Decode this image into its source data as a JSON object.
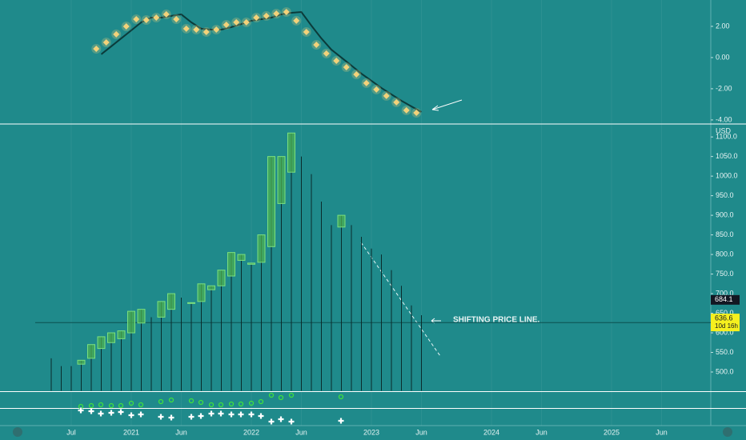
{
  "chart_data": [
    {
      "type": "line",
      "xlim": [
        -5.12,
        65.92
      ],
      "ylim": [
        -4.26,
        3.69
      ],
      "yticks": [
        {
          "value": 2,
          "label": "2.00"
        },
        {
          "value": 0,
          "label": "0.00"
        },
        {
          "value": -2,
          "label": "-2.00"
        },
        {
          "value": -4,
          "label": "-4.00"
        }
      ],
      "series": [
        {
          "color": "#0b3b3a",
          "style": "line",
          "x": [
            5,
            6,
            7,
            8,
            9,
            10,
            11,
            12,
            13,
            14,
            15,
            16,
            17,
            18,
            19,
            20,
            21,
            22,
            23,
            24,
            25,
            26,
            27,
            28,
            29,
            30,
            31,
            32,
            33,
            34,
            35,
            36,
            37
          ],
          "values": [
            0.21,
            0.72,
            1.23,
            1.74,
            2.26,
            2.56,
            2.56,
            2.67,
            2.77,
            2.26,
            1.85,
            1.79,
            1.79,
            1.95,
            2.15,
            2.36,
            2.46,
            2.56,
            2.77,
            2.87,
            2.92,
            2.05,
            1.23,
            0.51,
            0,
            -0.51,
            -1.03,
            -1.49,
            -1.95,
            -2.36,
            -2.77,
            -3.13,
            -3.49
          ]
        },
        {
          "color": "#f3d27a",
          "style": "diamonds",
          "x": [
            4.5,
            5.5,
            6.5,
            7.5,
            8.5,
            9.5,
            10.5,
            11.5,
            12.5,
            13.5,
            14.5,
            15.5,
            16.5,
            17.5,
            18.5,
            19.5,
            20.5,
            21.5,
            22.5,
            23.5,
            24.5,
            25.5,
            26.5,
            27.5,
            28.5,
            29.5,
            30.5,
            31.5,
            32.5,
            33.5,
            34.5,
            35.5,
            36.5
          ],
          "values": [
            0.56,
            0.97,
            1.49,
            2.0,
            2.46,
            2.41,
            2.56,
            2.77,
            2.46,
            1.85,
            1.79,
            1.64,
            1.79,
            2.1,
            2.26,
            2.26,
            2.56,
            2.67,
            2.82,
            2.92,
            2.36,
            1.64,
            0.82,
            0.26,
            -0.21,
            -0.62,
            -1.08,
            -1.64,
            -2.05,
            -2.46,
            -2.87,
            -3.38,
            -3.54
          ]
        }
      ]
    },
    {
      "type": "candlestick",
      "unit": "USD",
      "annotation": "SHIFTING PRICE LINE.",
      "xlim": [
        -5.12,
        65.92
      ],
      "xticks": [
        {
          "value": 2,
          "label": "Jul"
        },
        {
          "value": 8,
          "label": "2021"
        },
        {
          "value": 13,
          "label": "Jun"
        },
        {
          "value": 20,
          "label": "2022"
        },
        {
          "value": 25,
          "label": "Jun"
        },
        {
          "value": 32,
          "label": "2023"
        },
        {
          "value": 37,
          "label": "Jun"
        },
        {
          "value": 44,
          "label": "2024"
        },
        {
          "value": 49,
          "label": "Jun"
        },
        {
          "value": 56,
          "label": "2025"
        },
        {
          "value": 61,
          "label": "Jun"
        }
      ],
      "ylim": [
        451,
        1133
      ],
      "yticks": [
        {
          "value": 500,
          "label": "500.0"
        },
        {
          "value": 550,
          "label": "550.0"
        },
        {
          "value": 600,
          "label": "600.0"
        },
        {
          "value": 650,
          "label": "650.0"
        },
        {
          "value": 700,
          "label": "700.0"
        },
        {
          "value": 750,
          "label": "750.0"
        },
        {
          "value": 800,
          "label": "800.0"
        },
        {
          "value": 850,
          "label": "850.0"
        },
        {
          "value": 900,
          "label": "900.0"
        },
        {
          "value": 950,
          "label": "950.0"
        },
        {
          "value": 1000,
          "label": "1000.0"
        },
        {
          "value": 1050,
          "label": "1050.0"
        },
        {
          "value": 1100,
          "label": "1100.0"
        }
      ],
      "price_line": 626,
      "price_markers": [
        {
          "value": 684.1,
          "color": "#131722"
        },
        {
          "value": 636.6,
          "color": "#f5f01e",
          "countdown": "10d 16h"
        }
      ],
      "body_color": "#4caf50",
      "wick_color": "#0b2b2b",
      "x": [
        0,
        1,
        2,
        3,
        4,
        5,
        6,
        7,
        8,
        9,
        10,
        11,
        12,
        13,
        14,
        15,
        16,
        17,
        18,
        19,
        20,
        21,
        22,
        23,
        24,
        25,
        26,
        27,
        28,
        29,
        30,
        31,
        32,
        33,
        34,
        35,
        36,
        37
      ],
      "open": [
        null,
        null,
        null,
        520,
        535,
        560,
        575,
        585,
        600,
        625,
        null,
        640,
        660,
        null,
        675,
        680,
        710,
        720,
        745,
        785,
        775,
        780,
        820,
        930,
        1010,
        null,
        null,
        null,
        null,
        870,
        null,
        null,
        null,
        null,
        null,
        null,
        null,
        null
      ],
      "high": [
        535,
        515,
        515,
        530,
        570,
        590,
        600,
        605,
        655,
        660,
        640,
        680,
        700,
        690,
        677,
        725,
        720,
        760,
        805,
        800,
        778,
        850,
        1050,
        1050,
        1110,
        1050,
        1005,
        935,
        875,
        900,
        875,
        845,
        815,
        800,
        760,
        720,
        670,
        645
      ],
      "low": [
        452,
        452,
        452,
        452,
        452,
        452,
        452,
        452,
        452,
        452,
        452,
        452,
        452,
        452,
        452,
        452,
        452,
        452,
        452,
        452,
        452,
        452,
        452,
        452,
        452,
        452,
        452,
        452,
        452,
        452,
        452,
        452,
        452,
        452,
        452,
        452,
        452,
        452
      ],
      "close": [
        null,
        null,
        null,
        530,
        570,
        590,
        600,
        605,
        655,
        660,
        null,
        680,
        700,
        null,
        677,
        725,
        720,
        760,
        805,
        800,
        778,
        850,
        1050,
        1050,
        1110,
        null,
        null,
        null,
        null,
        900,
        null,
        null,
        null,
        null,
        null,
        null,
        null,
        null
      ]
    }
  ]
}
